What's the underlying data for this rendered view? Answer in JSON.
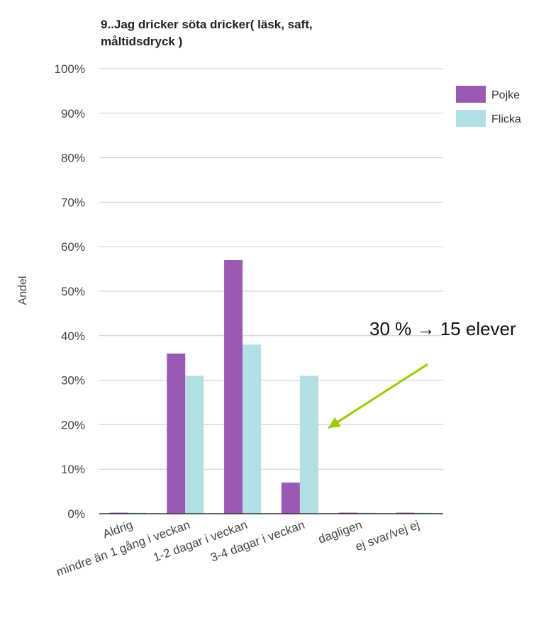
{
  "chart_data": {
    "type": "bar",
    "title_lines": [
      "9..Jag dricker söta dricker( läsk, saft,",
      "måltidsdryck )"
    ],
    "xlabel": "",
    "ylabel": "Andel",
    "ylim": [
      0,
      100
    ],
    "yticks": [
      "0%",
      "10%",
      "20%",
      "30%",
      "40%",
      "50%",
      "60%",
      "70%",
      "80%",
      "90%",
      "100%"
    ],
    "grid": true,
    "legend_position": "top-right",
    "categories": [
      "Aldrig",
      "mindre än 1 gång i veckan",
      "1-2 dagar i veckan",
      "3-4 dagar i veckan",
      "dagligen",
      "ej svar/vej ej"
    ],
    "series": [
      {
        "name": "Pojke",
        "color": "#9b59b6",
        "values": [
          0,
          36,
          57,
          7,
          0,
          0
        ]
      },
      {
        "name": "Flicka",
        "color": "#b0e0e3",
        "values": [
          0,
          31,
          38,
          31,
          0,
          0
        ]
      }
    ],
    "annotation": {
      "text": "30 % → 15 elever",
      "arrow_color": "#99cc00",
      "points_to_category": "3-4 dagar i veckan",
      "points_to_series": "Flicka",
      "points_to_value": 31
    }
  }
}
